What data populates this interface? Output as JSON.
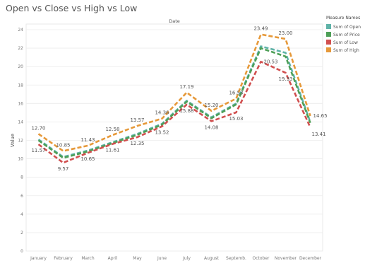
{
  "title": "Open vs Close vs High vs Low",
  "chart_data": {
    "type": "line",
    "column_title": "Date",
    "ylabel": "Value",
    "ylim": [
      0,
      24
    ],
    "yticks": [
      0,
      2,
      4,
      6,
      8,
      10,
      12,
      14,
      16,
      18,
      20,
      22,
      24
    ],
    "grid": true,
    "categories": [
      "January",
      "February",
      "March",
      "April",
      "May",
      "June",
      "July",
      "August",
      "Septemb.",
      "October",
      "November",
      "December"
    ],
    "legend": {
      "title": "Measure Names",
      "placement": "right"
    },
    "series": [
      {
        "name": "Sum of Open",
        "color": "#5fb3a8",
        "values": [
          12.1,
          10.2,
          10.9,
          11.8,
          12.7,
          13.8,
          16.3,
          14.5,
          16.0,
          22.2,
          21.5,
          14.0
        ]
      },
      {
        "name": "Sum of Price",
        "color": "#4e9f57",
        "values": [
          12.0,
          10.1,
          10.8,
          11.7,
          12.6,
          13.7,
          16.2,
          14.4,
          15.9,
          22.0,
          21.1,
          13.9
        ]
      },
      {
        "name": "Sum of Low",
        "color": "#d14f4f",
        "values": [
          11.57,
          9.57,
          10.65,
          11.61,
          12.35,
          13.52,
          15.88,
          14.08,
          15.03,
          20.53,
          19.33,
          13.41
        ]
      },
      {
        "name": "Sum of High",
        "color": "#e6993a",
        "values": [
          12.7,
          10.85,
          11.43,
          12.58,
          13.57,
          14.36,
          17.19,
          15.2,
          16.53,
          23.49,
          23.0,
          14.65
        ]
      }
    ],
    "data_labels": [
      {
        "text": "12.70",
        "series": 3,
        "index": 0,
        "pos": "above"
      },
      {
        "text": "11.57",
        "series": 2,
        "index": 0,
        "pos": "below"
      },
      {
        "text": "10.85",
        "series": 3,
        "index": 1,
        "pos": "above"
      },
      {
        "text": "9.57",
        "series": 2,
        "index": 1,
        "pos": "below"
      },
      {
        "text": "11.43",
        "series": 3,
        "index": 2,
        "pos": "above"
      },
      {
        "text": "10.65",
        "series": 2,
        "index": 2,
        "pos": "below"
      },
      {
        "text": "12.58",
        "series": 3,
        "index": 3,
        "pos": "above"
      },
      {
        "text": "11.61",
        "series": 2,
        "index": 3,
        "pos": "below"
      },
      {
        "text": "13.57",
        "series": 3,
        "index": 4,
        "pos": "above"
      },
      {
        "text": "12.35",
        "series": 2,
        "index": 4,
        "pos": "below"
      },
      {
        "text": "14.36",
        "series": 3,
        "index": 5,
        "pos": "above"
      },
      {
        "text": "13.52",
        "series": 2,
        "index": 5,
        "pos": "below"
      },
      {
        "text": "17.19",
        "series": 3,
        "index": 6,
        "pos": "above"
      },
      {
        "text": "15.88",
        "series": 2,
        "index": 6,
        "pos": "below"
      },
      {
        "text": "15.20",
        "series": 3,
        "index": 7,
        "pos": "above"
      },
      {
        "text": "14.08",
        "series": 2,
        "index": 7,
        "pos": "below"
      },
      {
        "text": "16.53",
        "series": 3,
        "index": 8,
        "pos": "above"
      },
      {
        "text": "15.03",
        "series": 2,
        "index": 8,
        "pos": "below"
      },
      {
        "text": "23.49",
        "series": 3,
        "index": 9,
        "pos": "above"
      },
      {
        "text": "20.53",
        "series": 2,
        "index": 9,
        "pos": "right"
      },
      {
        "text": "23.00",
        "series": 3,
        "index": 10,
        "pos": "above"
      },
      {
        "text": "19.33",
        "series": 2,
        "index": 10,
        "pos": "below"
      },
      {
        "text": "14.65",
        "series": 3,
        "index": 11,
        "pos": "right"
      },
      {
        "text": "13.41",
        "series": 2,
        "index": 11,
        "pos": "below-right"
      }
    ]
  }
}
